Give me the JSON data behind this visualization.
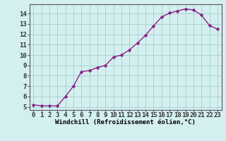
{
  "x": [
    0,
    1,
    2,
    3,
    4,
    5,
    6,
    7,
    8,
    9,
    10,
    11,
    12,
    13,
    14,
    15,
    16,
    17,
    18,
    19,
    20,
    21,
    22,
    23
  ],
  "y": [
    5.2,
    5.1,
    5.1,
    5.1,
    6.0,
    7.0,
    8.4,
    8.5,
    8.8,
    9.0,
    9.8,
    10.0,
    10.5,
    11.15,
    11.9,
    12.8,
    13.65,
    14.05,
    14.25,
    14.45,
    14.35,
    13.85,
    12.85,
    12.5
  ],
  "line_color": "#882288",
  "marker_color": "#882288",
  "bg_color": "#d4efef",
  "grid_color": "#aad4d4",
  "xlabel": "Windchill (Refroidissement éolien,°C)",
  "ytick_labels": [
    "5",
    "6",
    "7",
    "8",
    "9",
    "10",
    "11",
    "12",
    "13",
    "14"
  ],
  "ytick_values": [
    5,
    6,
    7,
    8,
    9,
    10,
    11,
    12,
    13,
    14
  ],
  "ylim": [
    4.7,
    14.9
  ],
  "xlim": [
    -0.5,
    23.5
  ],
  "xlabel_fontsize": 6.5,
  "tick_fontsize": 6.5,
  "marker_size": 2.5,
  "line_width": 1.0
}
